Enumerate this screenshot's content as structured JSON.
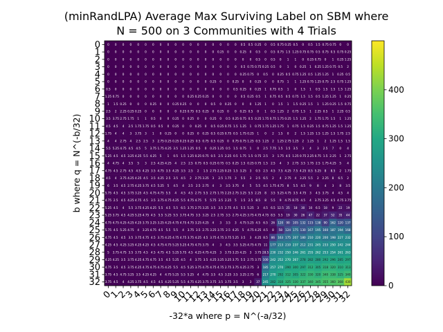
{
  "chart_data": {
    "type": "heatmap",
    "title_lines": [
      "(minRandLPA) Average Max Surviving Label on SBM where",
      "N = 500 on 3 Communities with 4 Trials"
    ],
    "xlabel": "-32*a where p = N^(-a/32)",
    "ylabel": "b where q = N^(-b/32)",
    "x_ticks": [
      "0",
      "1",
      "2",
      "3",
      "4",
      "5",
      "6",
      "7",
      "8",
      "9",
      "10",
      "11",
      "12",
      "13",
      "14",
      "15",
      "16",
      "17",
      "18",
      "19",
      "20",
      "21",
      "22",
      "23",
      "24",
      "25",
      "26",
      "27",
      "28",
      "29",
      "30",
      "31",
      "32"
    ],
    "y_ticks": [
      "0",
      "1",
      "2",
      "3",
      "4",
      "5",
      "6",
      "7",
      "8",
      "9",
      "10",
      "11",
      "12",
      "13",
      "14",
      "15",
      "16",
      "17",
      "18",
      "19",
      "20",
      "21",
      "22",
      "23",
      "24",
      "25",
      "26",
      "27",
      "28",
      "29",
      "30",
      "31",
      "32"
    ],
    "colorbar": {
      "range": [
        0,
        500
      ],
      "ticks": [
        "0",
        "100",
        "200",
        "300",
        "400"
      ],
      "colormap": "viridis"
    },
    "cell_label_note": "each cell shows its value as tiny text",
    "values": [
      [
        0,
        0,
        0,
        0,
        0,
        0,
        0,
        0,
        0,
        0,
        0,
        0,
        0,
        0,
        0,
        0,
        0,
        0,
        0.5,
        0.5,
        0.25,
        0,
        0.5,
        0.75,
        0.25,
        0.5,
        0,
        0.5,
        1.5,
        0.75,
        0.75,
        0,
        0
      ],
      [
        0,
        0,
        0,
        0,
        0,
        0,
        0,
        0,
        0,
        0,
        0,
        0,
        0,
        0,
        0,
        0.25,
        0,
        0,
        0.25,
        0,
        0.5,
        0,
        0.5,
        0.75,
        1.5,
        1.25,
        0.75,
        0.75,
        0.5,
        0.75,
        0.5,
        0.75,
        0.25
      ],
      [
        0,
        0,
        0,
        0,
        0,
        0,
        0,
        0,
        0,
        0,
        0,
        0,
        0,
        0,
        0,
        0,
        0,
        0,
        0,
        0,
        0.5,
        0,
        0.5,
        0,
        1,
        1,
        0,
        0.25,
        0.75,
        0,
        1,
        0.25,
        1.25
      ],
      [
        0,
        0,
        0,
        0,
        0,
        0,
        0,
        0,
        0,
        0,
        0,
        0,
        0,
        0,
        0,
        0,
        0,
        0,
        0.5,
        0.75,
        0.75,
        0.25,
        0.5,
        0,
        1,
        0,
        0.25,
        1,
        0.25,
        1.25,
        0.75,
        0.5,
        2
      ],
      [
        0,
        0,
        0,
        0,
        0,
        0,
        0,
        0,
        0,
        0,
        0,
        0,
        0,
        0,
        0,
        0,
        0,
        0,
        0.25,
        0.75,
        0,
        0.5,
        0,
        0.25,
        0.5,
        0.75,
        1.25,
        0.5,
        1.25,
        1.25,
        1,
        0.25,
        0.5
      ],
      [
        0,
        0,
        0,
        0,
        0,
        0,
        0,
        0,
        0,
        0,
        0,
        0,
        0,
        0,
        0.25,
        0,
        0,
        0.25,
        0,
        0,
        0.25,
        0,
        0,
        0.75,
        1,
        1,
        1.25,
        0.75,
        1.25,
        0.75,
        2.5,
        0.75,
        1.25
      ],
      [
        0.5,
        0,
        0,
        0,
        0,
        0,
        0,
        0,
        0,
        0,
        0,
        0,
        0,
        0,
        0,
        0,
        0,
        0.5,
        0.25,
        0,
        0.25,
        1,
        0.75,
        0.5,
        1,
        0,
        1.5,
        1,
        0.5,
        1.5,
        1.5,
        1.5,
        1.25
      ],
      [
        1.25,
        0.75,
        0,
        0,
        0,
        0,
        0,
        0,
        0,
        0,
        0,
        0.25,
        0.25,
        0.25,
        0,
        0,
        0,
        0,
        0.5,
        0.25,
        0.5,
        1,
        0.75,
        0.5,
        0.5,
        0.75,
        1.5,
        1.5,
        0.5,
        1.25,
        1.25,
        1,
        0.25
      ],
      [
        1,
        1.5,
        0.25,
        0,
        0,
        0,
        0.25,
        0,
        0,
        0.25,
        0.25,
        0,
        0,
        0,
        0.5,
        0,
        0.25,
        0,
        0,
        0,
        1.25,
        1,
        0,
        1.5,
        1,
        1.5,
        0.25,
        1.5,
        1,
        1.25,
        0.25,
        1.5,
        0.75
      ],
      [
        2.5,
        2,
        2.25,
        0.25,
        0.25,
        0,
        0,
        0,
        0,
        0,
        0.25,
        0.75,
        0.5,
        0.25,
        0,
        0.25,
        0,
        0,
        0.25,
        0.5,
        0,
        1,
        0.5,
        1.25,
        2,
        0.75,
        1.5,
        1,
        2.25,
        0.5,
        1,
        2.25,
        0.5
      ],
      [
        3.5,
        3.75,
        2.75,
        1.75,
        1,
        1,
        0.5,
        0,
        0,
        0.25,
        0,
        0.25,
        0,
        0,
        0.25,
        0,
        0.5,
        0.25,
        0.75,
        0.5,
        0.25,
        1.75,
        0.75,
        1.75,
        0.25,
        1.5,
        1.25,
        2,
        1.75,
        1.75,
        1.5,
        1,
        1.25
      ],
      [
        4.5,
        4.5,
        4,
        2.5,
        1.75,
        1.75,
        0.5,
        0.5,
        0,
        0.25,
        0,
        0,
        0.25,
        0,
        0.5,
        0.25,
        0.75,
        1.5,
        1.25,
        1,
        0.75,
        1.75,
        1.25,
        1.75,
        1,
        0.75,
        1.5,
        0.25,
        1.5,
        0.75,
        1.25,
        1.5,
        1.25
      ],
      [
        1.75,
        4,
        4,
        3,
        3.75,
        3,
        1,
        0,
        0.25,
        0,
        0,
        0.25,
        0,
        0.25,
        0.5,
        0.25,
        0.75,
        0.5,
        1.75,
        0.25,
        1,
        0,
        2,
        1.5,
        0,
        2,
        1.5,
        1.25,
        1.5,
        1.25,
        1.5,
        1.75,
        2.5
      ],
      [
        4,
        4,
        2.75,
        4,
        2.5,
        2.5,
        3,
        2.75,
        0.25,
        0.25,
        0.25,
        0.25,
        0.5,
        0.75,
        0.5,
        0.25,
        0,
        0.75,
        0.75,
        1.25,
        0.5,
        1.25,
        2,
        1.25,
        2.75,
        1.25,
        2,
        1.25,
        1,
        2,
        1.25,
        1.5,
        1.5
      ],
      [
        5.5,
        5.25,
        4.75,
        4.5,
        4.5,
        5,
        3.75,
        1.75,
        4.25,
        3.5,
        1.25,
        1.25,
        0.5,
        0,
        0.25,
        1.25,
        0.5,
        1.5,
        0.75,
        1,
        0,
        2.5,
        7.75,
        1.5,
        1.5,
        3.5,
        3,
        4,
        3,
        2.5,
        7,
        0,
        4
      ],
      [
        5.25,
        4.5,
        4.5,
        3.25,
        4.25,
        5.5,
        4.25,
        5,
        1,
        0.5,
        1.5,
        1.25,
        0.25,
        0.75,
        0.5,
        2.5,
        2.25,
        0.5,
        1.75,
        1.5,
        0.75,
        2.5,
        3,
        1.75,
        4.5,
        1.25,
        0.75,
        2.25,
        0.75,
        1.5,
        2.25,
        1,
        2.75
      ],
      [
        4,
        4.75,
        4,
        3.5,
        5,
        3,
        2.5,
        4.25,
        4.25,
        4,
        2.5,
        2.5,
        0.75,
        0.5,
        0.25,
        0.75,
        0.5,
        0.25,
        1.5,
        0.25,
        0.75,
        1.5,
        2.5,
        4,
        3,
        2.75,
        3.5,
        1.75,
        2.5,
        1.75,
        4.25,
        5,
        4
      ],
      [
        4.75,
        4.5,
        2.75,
        4.5,
        4.5,
        4.25,
        3.5,
        4.75,
        3.5,
        4.25,
        3.5,
        2.5,
        2,
        1.5,
        2.75,
        2.25,
        0.25,
        1.5,
        3.25,
        3,
        0.5,
        2.5,
        4.5,
        7.5,
        4.25,
        7.5,
        4.25,
        8.5,
        5.25,
        8,
        8.5,
        2,
        1.75
      ],
      [
        4.5,
        4,
        3.75,
        4.25,
        4.25,
        4.5,
        3.5,
        4.25,
        2.5,
        3.5,
        4.5,
        2,
        2.75,
        3.25,
        3,
        2.5,
        1.75,
        3,
        5.5,
        3,
        2.5,
        6.5,
        2,
        4,
        2.75,
        4,
        3.25,
        5.5,
        2,
        2.25,
        8,
        6.5,
        2
      ],
      [
        6,
        3.5,
        4.5,
        2.75,
        4.25,
        3.75,
        4.5,
        5.25,
        5,
        4.5,
        4,
        2.5,
        2.5,
        2.75,
        4,
        3,
        3.5,
        3.75,
        4,
        5,
        5.5,
        4.5,
        1.75,
        4.75,
        8,
        5.5,
        4.5,
        9,
        8,
        4,
        3,
        8,
        3.5
      ],
      [
        5.75,
        4.5,
        4.5,
        3.75,
        3.25,
        4.5,
        4.75,
        4.75,
        5.5,
        4,
        4.5,
        4.5,
        2.75,
        5.5,
        2.75,
        1.75,
        2.25,
        2.75,
        3.25,
        5.5,
        2.25,
        8,
        3.5,
        5.25,
        4.75,
        3.5,
        4.75,
        3,
        4.5,
        3.75,
        4,
        4.5,
        4
      ],
      [
        4.75,
        2.5,
        4.5,
        4.25,
        4.75,
        4.5,
        3.5,
        3.75,
        4.75,
        4.25,
        5.5,
        4.75,
        4.75,
        5,
        5.75,
        3.5,
        2.25,
        5,
        1.5,
        2.5,
        8.5,
        8,
        5.5,
        9,
        4.75,
        8.75,
        4.5,
        4,
        3.75,
        3.25,
        4.5,
        4.75,
        3.75
      ],
      [
        5.25,
        4.5,
        4,
        5.5,
        3.75,
        4.25,
        4.25,
        5.5,
        4.5,
        5.5,
        6.5,
        3.75,
        2.75,
        3.25,
        3.5,
        3.5,
        2.75,
        4.5,
        5.5,
        5.25,
        3,
        4.5,
        6.5,
        12.5,
        25,
        18,
        30,
        10,
        6.5,
        18,
        9,
        22,
        19
      ],
      [
        5.25,
        3.75,
        4.5,
        4.25,
        5.25,
        4.75,
        4.5,
        5.5,
        5.25,
        5.5,
        3.75,
        4.75,
        3.5,
        3.25,
        2.5,
        2.75,
        3.5,
        2.75,
        4.25,
        3.75,
        4.75,
        4.75,
        8.5,
        5.5,
        19,
        30,
        26,
        47,
        22,
        37,
        52,
        35,
        44
      ],
      [
        4.75,
        4.75,
        4.25,
        4.25,
        4.25,
        3.75,
        3.25,
        3.25,
        4.25,
        4.75,
        4.75,
        4.75,
        3.25,
        4.25,
        4,
        3,
        3.5,
        3,
        4.75,
        5.25,
        4.5,
        6.5,
        26,
        120,
        90,
        105,
        132,
        115,
        138,
        90,
        162,
        120,
        137
      ],
      [
        5.75,
        4.5,
        5.25,
        4.75,
        4,
        3.25,
        4.75,
        4.5,
        5.5,
        5.5,
        4,
        3.75,
        3.5,
        2.75,
        3.25,
        3.75,
        2.5,
        4.25,
        5,
        4.75,
        4.25,
        4.5,
        8,
        58,
        124,
        175,
        130,
        167,
        195,
        160,
        187,
        194,
        168
      ],
      [
        4.75,
        4.5,
        4.5,
        3.5,
        3.75,
        4.75,
        4.5,
        3.75,
        4.25,
        4.75,
        4.75,
        3.75,
        4.25,
        4.5,
        3.75,
        4.75,
        3.75,
        5.25,
        3.5,
        3,
        4.25,
        8.5,
        86,
        163,
        175,
        207,
        180,
        210,
        220,
        200,
        198,
        227,
        232
      ],
      [
        4.25,
        4.5,
        4.25,
        3.25,
        4.25,
        4.25,
        4.5,
        4.75,
        4.75,
        5.25,
        5.25,
        4.75,
        4.75,
        3.75,
        4,
        3,
        4.5,
        3.5,
        5.25,
        4.75,
        4.75,
        11,
        177,
        213,
        210,
        237,
        212,
        231,
        245,
        233,
        250,
        242,
        244
      ],
      [
        5,
        3.75,
        4.75,
        3.5,
        3.75,
        4.5,
        4.5,
        4.75,
        4.5,
        5.25,
        5.75,
        4.5,
        4.25,
        4.75,
        4.25,
        3,
        3.75,
        3.25,
        4.25,
        3,
        3.75,
        28.5,
        230,
        232,
        250,
        246,
        261,
        255,
        262,
        253,
        254,
        261,
        263
      ],
      [
        4.25,
        4.25,
        3.5,
        3.75,
        4.25,
        4.75,
        4.75,
        3.5,
        4.5,
        5.25,
        4.5,
        4,
        3.75,
        3.5,
        4.25,
        3.25,
        3.25,
        3.75,
        5.5,
        2.75,
        3.75,
        100,
        242,
        252,
        270,
        267,
        278,
        282,
        280,
        292,
        296,
        285,
        297
      ],
      [
        4.75,
        3.5,
        4.5,
        3.75,
        4.25,
        4.75,
        4.75,
        4.75,
        4.25,
        5.5,
        4.5,
        5.25,
        3.75,
        4.75,
        4.75,
        4.75,
        2.75,
        3.75,
        4.25,
        2.75,
        3,
        185,
        257,
        270,
        290,
        300,
        297,
        312,
        305,
        318,
        320,
        310,
        313
      ],
      [
        3.75,
        4.5,
        4.75,
        3.25,
        3.5,
        4.25,
        4.25,
        4,
        4.75,
        5.25,
        5.5,
        5.25,
        4,
        4.75,
        3.5,
        4.5,
        3.25,
        3.5,
        3.25,
        2.75,
        6,
        217,
        270,
        292,
        312,
        305,
        322,
        330,
        320,
        340,
        338,
        325,
        340
      ],
      [
        3.75,
        4.5,
        4,
        4.25,
        3.75,
        4.5,
        4.5,
        4.5,
        4.25,
        5.25,
        5.5,
        4.75,
        4.25,
        3.75,
        3.75,
        3.5,
        3.75,
        3.5,
        3,
        3,
        37,
        245,
        282,
        310,
        325,
        330,
        337,
        340,
        345,
        355,
        360,
        368,
        430
      ]
    ]
  }
}
